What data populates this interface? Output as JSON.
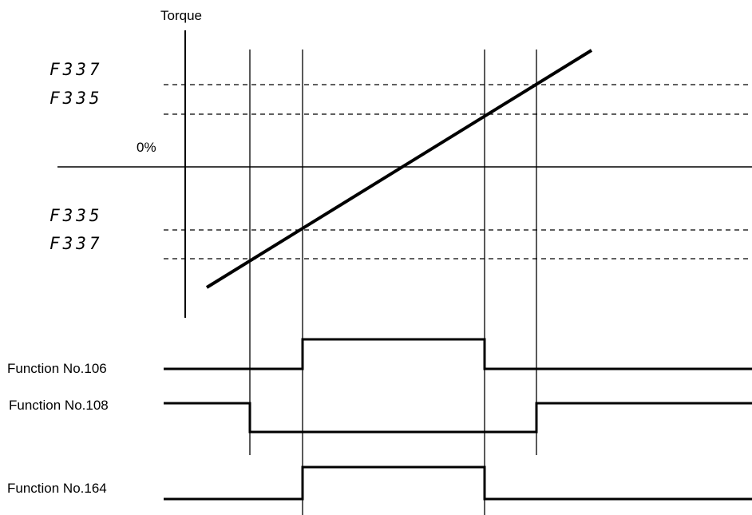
{
  "diagram": {
    "axis_label": "Torque",
    "zero_label": "0%",
    "upper_params": [
      "F337",
      "F335"
    ],
    "lower_params": [
      "F335",
      "F337"
    ],
    "signals": [
      {
        "label": "Function No.106"
      },
      {
        "label": "Function No.108"
      },
      {
        "label": "Function No.164"
      }
    ]
  }
}
